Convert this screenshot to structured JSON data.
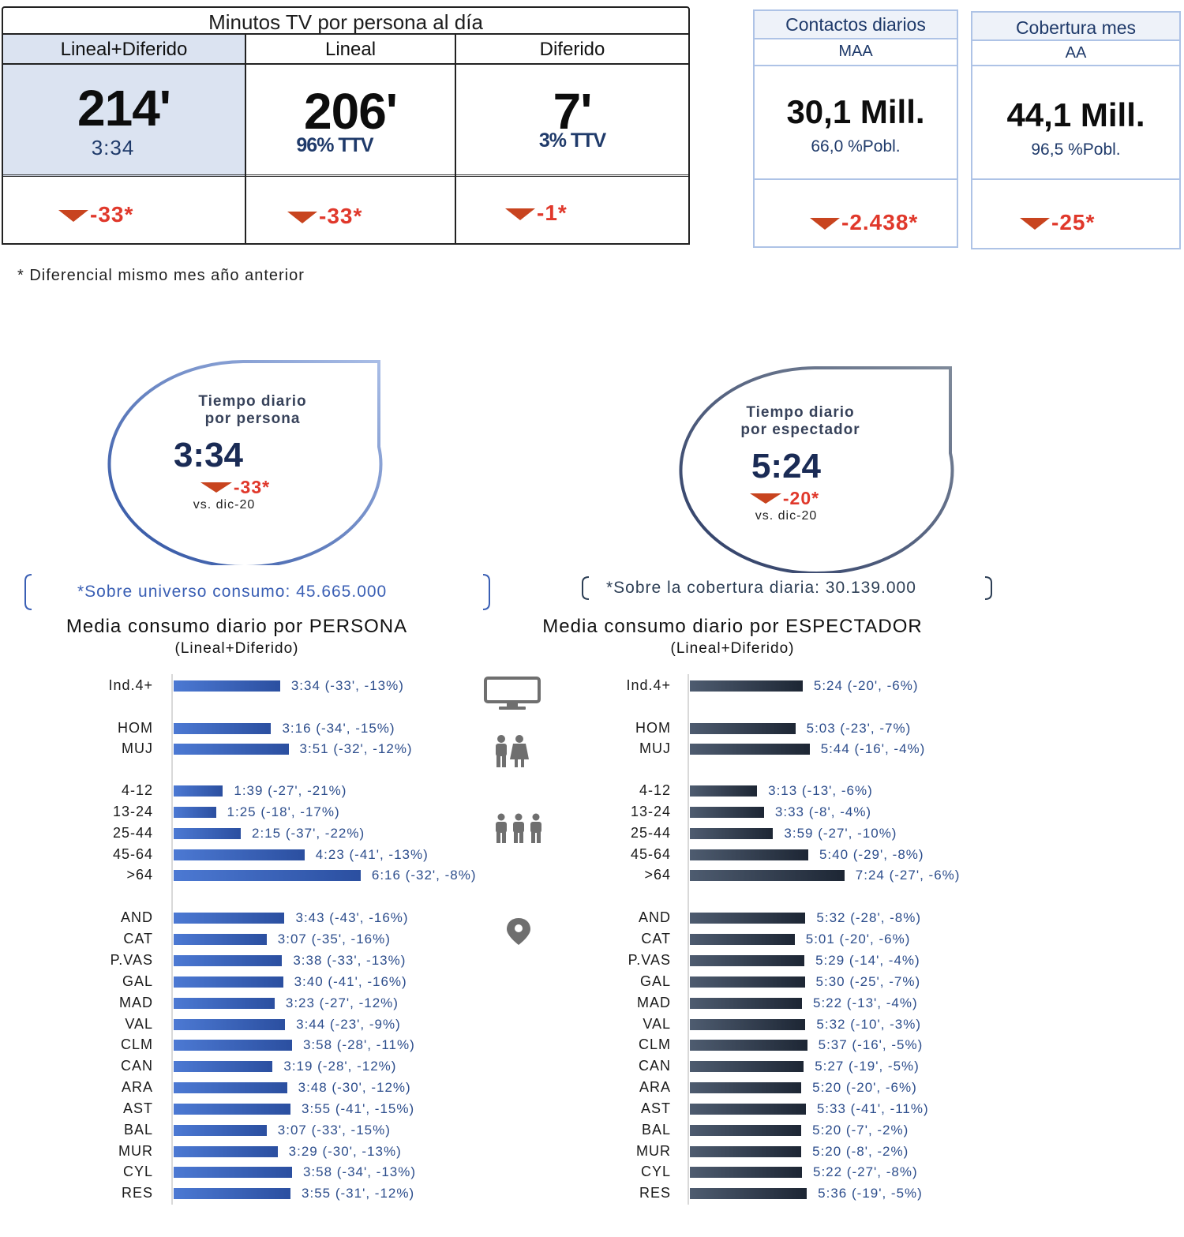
{
  "tv_table": {
    "title": "Minutos TV por persona al día",
    "columns": [
      {
        "header": "Lineal+Diferido",
        "main": "214'",
        "sub": "3:34",
        "delta": "-33*"
      },
      {
        "header": "Lineal",
        "main": "206'",
        "sub": "96% TTV",
        "delta": "-33*"
      },
      {
        "header": "Diferido",
        "main": "7'",
        "sub": "3% TTV",
        "delta": "-1*"
      }
    ],
    "highlight_color": "#dbe3f1"
  },
  "cards": [
    {
      "title": "Contactos diarios",
      "subtitle": "MAA",
      "value": "30,1 Mill.",
      "pct": "66,0 %Pobl.",
      "delta": "-2.438*"
    },
    {
      "title": "Cobertura mes",
      "subtitle": "AA",
      "value": "44,1 Mill.",
      "pct": "96,5 %Pobl.",
      "delta": "-25*"
    }
  ],
  "footnote": "* Diferencial mismo mes año anterior",
  "drop_persona": {
    "line1": "Tiempo diario",
    "line2": "por persona",
    "value": "3:34",
    "delta": "-33*",
    "vs": "vs. dic-20"
  },
  "drop_espectador": {
    "line1": "Tiempo diario",
    "line2": "por espectador",
    "value": "5:24",
    "delta": "-20*",
    "vs": "vs. dic-20"
  },
  "universe_note": "*Sobre universo consumo: 45.665.000",
  "coverage_note": "*Sobre la cobertura diaria: 30.139.000",
  "icons": [
    "tv-icon",
    "couple-icon",
    "group-icon",
    "location-pin-icon"
  ],
  "chart_data": [
    {
      "type": "bar",
      "orientation": "horizontal",
      "title": "Media consumo diario por PERSONA",
      "subtitle": "(Lineal+Diferido)",
      "unit": "minutes",
      "xlim": [
        0,
        400
      ],
      "categories": [
        "Ind.4+",
        "HOM",
        "MUJ",
        "4-12",
        "13-24",
        "25-44",
        "45-64",
        ">64",
        "AND",
        "CAT",
        "P.VAS",
        "GAL",
        "MAD",
        "VAL",
        "CLM",
        "CAN",
        "ARA",
        "AST",
        "BAL",
        "MUR",
        "CYL",
        "RES"
      ],
      "values": [
        214,
        196,
        231,
        99,
        85,
        135,
        263,
        376,
        223,
        187,
        218,
        220,
        203,
        224,
        238,
        199,
        228,
        235,
        187,
        209,
        238,
        235
      ],
      "labels": [
        "3:34 (-33', -13%)",
        "3:16 (-34', -15%)",
        "3:51 (-32', -12%)",
        "1:39 (-27', -21%)",
        "1:25 (-18', -17%)",
        "2:15 (-37', -22%)",
        "4:23 (-41', -13%)",
        "6:16 (-32', -8%)",
        "3:43 (-43', -16%)",
        "3:07 (-35', -16%)",
        "3:38 (-33', -13%)",
        "3:40 (-41', -16%)",
        "3:23 (-27', -12%)",
        "3:44 (-23', -9%)",
        "3:58 (-28', -11%)",
        "3:19 (-28', -12%)",
        "3:48 (-30', -12%)",
        "3:55 (-41', -15%)",
        "3:07 (-33', -15%)",
        "3:29 (-30', -13%)",
        "3:58 (-34', -13%)",
        "3:55 (-31', -12%)"
      ]
    },
    {
      "type": "bar",
      "orientation": "horizontal",
      "title": "Media consumo diario por ESPECTADOR",
      "subtitle": "(Lineal+Diferido)",
      "unit": "minutes",
      "xlim": [
        0,
        510
      ],
      "categories": [
        "Ind.4+",
        "HOM",
        "MUJ",
        "4-12",
        "13-24",
        "25-44",
        "45-64",
        ">64",
        "AND",
        "CAT",
        "P.VAS",
        "GAL",
        "MAD",
        "VAL",
        "CLM",
        "CAN",
        "ARA",
        "AST",
        "BAL",
        "MUR",
        "CYL",
        "RES"
      ],
      "values": [
        324,
        303,
        344,
        193,
        213,
        239,
        340,
        444,
        332,
        301,
        329,
        330,
        322,
        332,
        337,
        327,
        320,
        333,
        320,
        320,
        322,
        336
      ],
      "labels": [
        "5:24 (-20', -6%)",
        "5:03 (-23', -7%)",
        "5:44 (-16', -4%)",
        "3:13 (-13', -6%)",
        "3:33 (-8', -4%)",
        "3:59 (-27', -10%)",
        "5:40 (-29', -8%)",
        "7:24 (-27', -6%)",
        "5:32 (-28', -8%)",
        "5:01 (-20', -6%)",
        "5:29 (-14', -4%)",
        "5:30 (-25', -7%)",
        "5:22 (-13', -4%)",
        "5:32 (-10', -3%)",
        "5:37 (-16', -5%)",
        "5:27 (-19', -5%)",
        "5:20 (-20', -6%)",
        "5:33 (-41', -11%)",
        "5:20 (-7', -2%)",
        "5:20 (-8', -2%)",
        "5:22 (-27', -8%)",
        "5:36 (-19', -5%)"
      ]
    }
  ]
}
